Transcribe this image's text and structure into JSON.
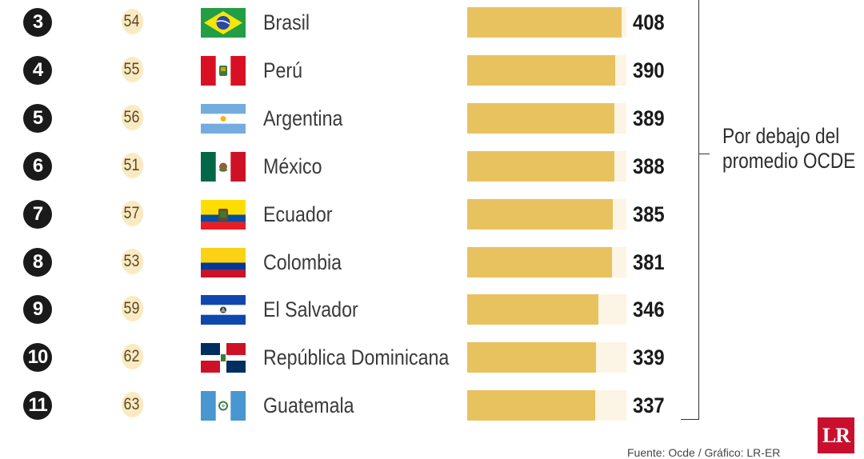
{
  "chart_data": {
    "type": "bar",
    "rows": [
      {
        "rank": "3",
        "position": "54",
        "country": "Brasil",
        "value": 408,
        "flag": "brazil-flag"
      },
      {
        "rank": "4",
        "position": "55",
        "country": "Perú",
        "value": 390,
        "flag": "peru-flag"
      },
      {
        "rank": "5",
        "position": "56",
        "country": "Argentina",
        "value": 389,
        "flag": "argentina-flag"
      },
      {
        "rank": "6",
        "position": "51",
        "country": "México",
        "value": 388,
        "flag": "mexico-flag"
      },
      {
        "rank": "7",
        "position": "57",
        "country": "Ecuador",
        "value": 385,
        "flag": "ecuador-flag"
      },
      {
        "rank": "8",
        "position": "53",
        "country": "Colombia",
        "value": 381,
        "flag": "colombia-flag"
      },
      {
        "rank": "9",
        "position": "59",
        "country": "El Salvador",
        "value": 346,
        "flag": "el-salvador-flag"
      },
      {
        "rank": "10",
        "position": "62",
        "country": "República Dominicana",
        "value": 339,
        "flag": "dominican-republic-flag"
      },
      {
        "rank": "11",
        "position": "63",
        "country": "Guatemala",
        "value": 337,
        "flag": "guatemala-flag"
      }
    ],
    "bracket_note_line1": "Por debajo del",
    "bracket_note_line2": "promedio OCDE",
    "logo": "LR",
    "source": "Fuente: Ocde / Gráfico: LR-ER",
    "colors": {
      "bar": "#e9c260",
      "track": "#fcf4e4",
      "position_badge": "#faeac1",
      "rank_badge": "#1a1a1a",
      "logo": "#c8102e"
    }
  }
}
